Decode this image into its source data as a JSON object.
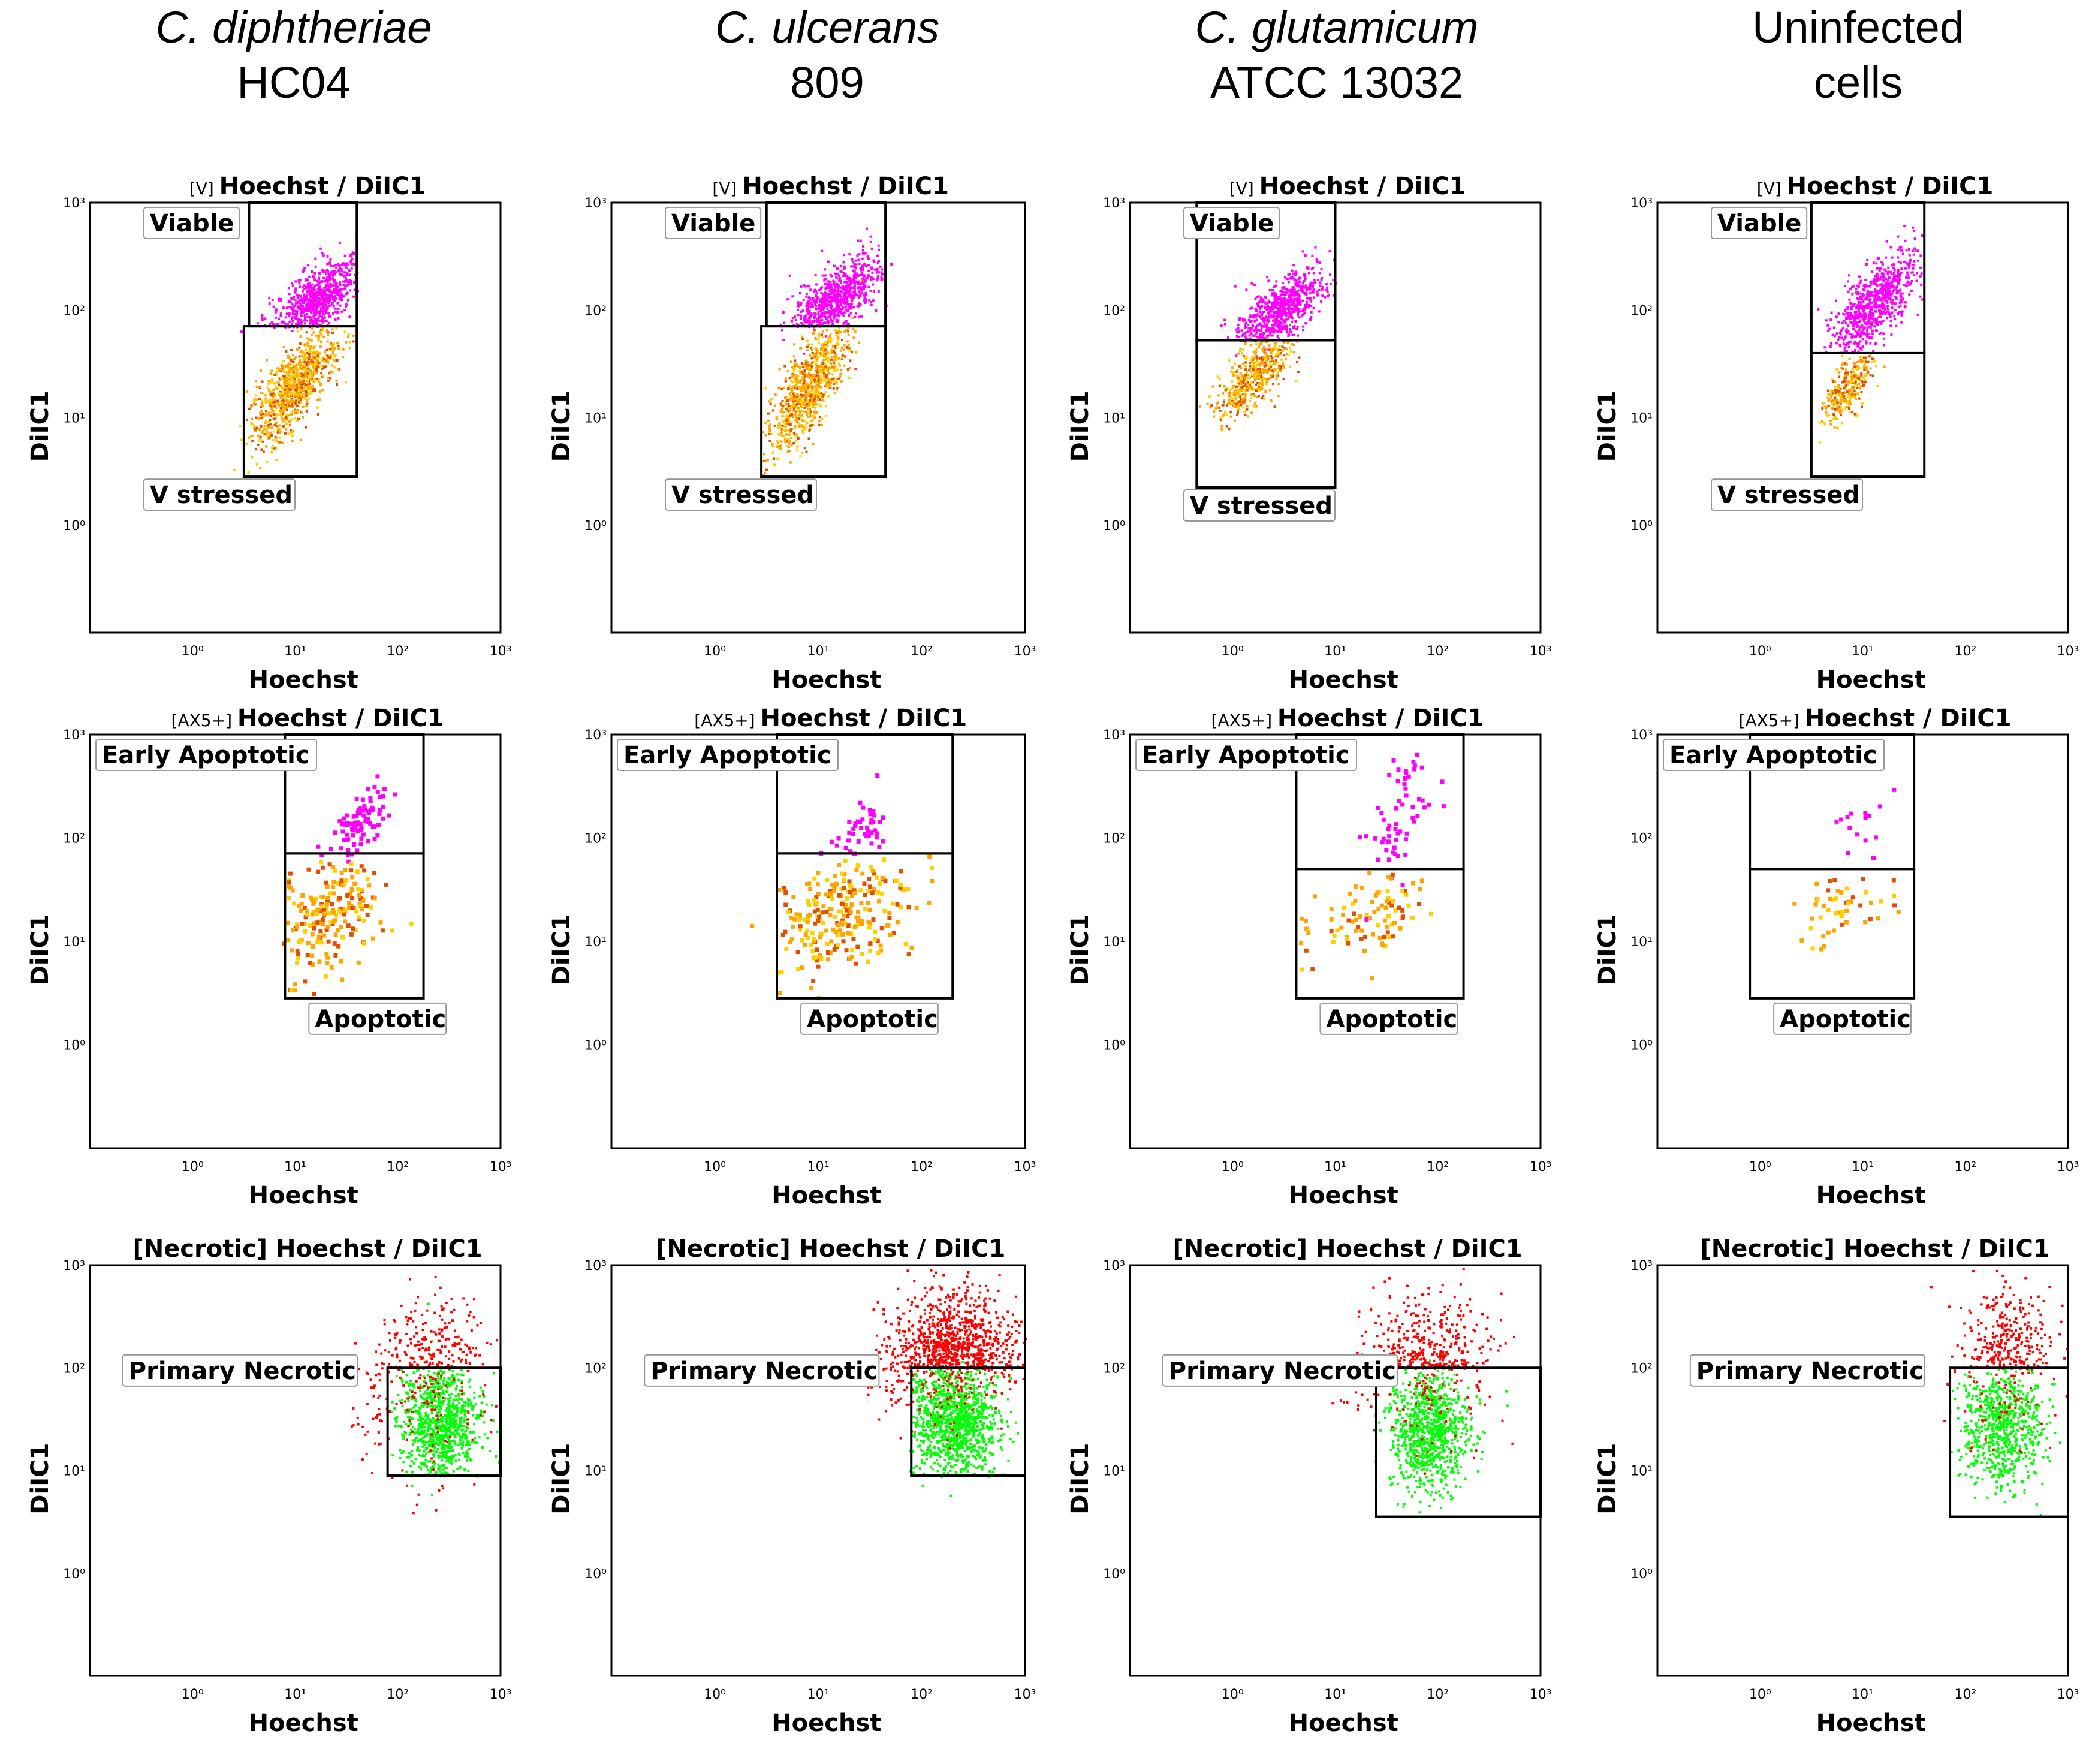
{
  "columns": [
    {
      "name": "C. diphtheriae",
      "strain": "HC04",
      "italic": true
    },
    {
      "name": "C. ulcerans",
      "strain": "809",
      "italic": true
    },
    {
      "name": "C. glutamicum",
      "strain": "ATCC 13032",
      "italic": true
    },
    {
      "name": "Uninfected",
      "strain": "cells",
      "italic": false
    }
  ],
  "colors": {
    "viable": "#ff00ff",
    "stressed": "#ffa500",
    "stressed_dense": "#e05000",
    "stressed_light": "#ffd000",
    "necrotic": "#ff0000",
    "primary_necrotic": "#00ff00",
    "outlier": "#0000ff",
    "frame": "#000000"
  },
  "chart_data": [
    {
      "type": "scatter",
      "row": 0,
      "col": 0,
      "title_prefix": "[V]",
      "title": "Hoechst / DiIC1",
      "xlabel": "Hoechst",
      "ylabel": "DiIC1",
      "xlim": [
        -1,
        3
      ],
      "ylim": [
        -1,
        3
      ],
      "xticks": [
        "10⁰",
        "10¹",
        "10²",
        "10³"
      ],
      "yticks": [
        "10⁰",
        "10¹",
        "10²",
        "10³"
      ],
      "gates": [
        {
          "label": "Viable",
          "x": [
            0.55,
            1.6
          ],
          "y": [
            1.85,
            3.0
          ]
        },
        {
          "label": "V stressed",
          "x": [
            0.5,
            1.6
          ],
          "y": [
            0.45,
            1.85
          ]
        }
      ],
      "clusters": [
        {
          "gate": "Viable",
          "n": 700,
          "cx": 1.2,
          "cy": 2.1,
          "sx": 0.22,
          "sy": 0.2,
          "corr": 0.7,
          "color": "viable"
        },
        {
          "gate": "V stressed",
          "n": 900,
          "cx": 0.98,
          "cy": 1.3,
          "sx": 0.22,
          "sy": 0.28,
          "corr": 0.75,
          "color": "stressed"
        }
      ]
    },
    {
      "type": "scatter",
      "row": 0,
      "col": 1,
      "title_prefix": "[V]",
      "title": "Hoechst / DiIC1",
      "xlabel": "Hoechst",
      "ylabel": "DiIC1",
      "xlim": [
        -1,
        3
      ],
      "ylim": [
        -1,
        3
      ],
      "xticks": [
        "10⁰",
        "10¹",
        "10²",
        "10³"
      ],
      "yticks": [
        "10⁰",
        "10¹",
        "10²",
        "10³"
      ],
      "gates": [
        {
          "label": "Viable",
          "x": [
            0.5,
            1.65
          ],
          "y": [
            1.85,
            3.0
          ]
        },
        {
          "label": "V stressed",
          "x": [
            0.45,
            1.65
          ],
          "y": [
            0.45,
            1.85
          ]
        }
      ],
      "clusters": [
        {
          "gate": "Viable",
          "n": 700,
          "cx": 1.15,
          "cy": 2.1,
          "sx": 0.22,
          "sy": 0.2,
          "corr": 0.7,
          "color": "viable"
        },
        {
          "gate": "V stressed",
          "n": 850,
          "cx": 0.9,
          "cy": 1.3,
          "sx": 0.2,
          "sy": 0.3,
          "corr": 0.75,
          "color": "stressed"
        }
      ]
    },
    {
      "type": "scatter",
      "row": 0,
      "col": 2,
      "title_prefix": "[V]",
      "title": "Hoechst / DiIC1",
      "xlabel": "Hoechst",
      "ylabel": "DiIC1",
      "xlim": [
        -1,
        3
      ],
      "ylim": [
        -1,
        3
      ],
      "xticks": [
        "10⁰",
        "10¹",
        "10²",
        "10³"
      ],
      "yticks": [
        "10⁰",
        "10¹",
        "10²",
        "10³"
      ],
      "gates": [
        {
          "label": "Viable",
          "x": [
            -0.35,
            1.0
          ],
          "y": [
            1.72,
            3.0
          ]
        },
        {
          "label": "V stressed",
          "x": [
            -0.35,
            1.0
          ],
          "y": [
            0.35,
            1.72
          ]
        }
      ],
      "clusters": [
        {
          "gate": "Viable",
          "n": 700,
          "cx": 0.45,
          "cy": 2.0,
          "sx": 0.22,
          "sy": 0.2,
          "corr": 0.7,
          "color": "viable"
        },
        {
          "gate": "V stressed",
          "n": 500,
          "cx": 0.2,
          "cy": 1.4,
          "sx": 0.18,
          "sy": 0.2,
          "corr": 0.7,
          "color": "stressed"
        }
      ]
    },
    {
      "type": "scatter",
      "row": 0,
      "col": 3,
      "title_prefix": "[V]",
      "title": "Hoechst / DiIC1",
      "xlabel": "Hoechst",
      "ylabel": "DiIC1",
      "xlim": [
        -1,
        3
      ],
      "ylim": [
        -1,
        3
      ],
      "xticks": [
        "10⁰",
        "10¹",
        "10²",
        "10³"
      ],
      "yticks": [
        "10⁰",
        "10¹",
        "10²",
        "10³"
      ],
      "gates": [
        {
          "label": "Viable",
          "x": [
            0.5,
            1.6
          ],
          "y": [
            1.6,
            3.0
          ]
        },
        {
          "label": "V stressed",
          "x": [
            0.5,
            1.6
          ],
          "y": [
            0.45,
            1.6
          ]
        }
      ],
      "clusters": [
        {
          "gate": "Viable",
          "n": 700,
          "cx": 1.1,
          "cy": 2.05,
          "sx": 0.2,
          "sy": 0.25,
          "corr": 0.7,
          "color": "viable"
        },
        {
          "gate": "V stressed",
          "n": 300,
          "cx": 0.85,
          "cy": 1.3,
          "sx": 0.12,
          "sy": 0.17,
          "corr": 0.6,
          "color": "stressed"
        }
      ]
    },
    {
      "type": "scatter",
      "row": 1,
      "col": 0,
      "title_prefix": "[AX5+]",
      "title": "Hoechst / DiIC1",
      "xlabel": "Hoechst",
      "ylabel": "DiIC1",
      "xlim": [
        -1,
        3
      ],
      "ylim": [
        -1,
        3
      ],
      "xticks": [
        "10⁰",
        "10¹",
        "10²",
        "10³"
      ],
      "yticks": [
        "10⁰",
        "10¹",
        "10²",
        "10³"
      ],
      "gates": [
        {
          "label": "Early Apoptotic",
          "x": [
            0.9,
            2.25
          ],
          "y": [
            1.85,
            3.0
          ]
        },
        {
          "label": "Apoptotic",
          "x": [
            0.9,
            2.25
          ],
          "y": [
            0.45,
            1.85
          ]
        }
      ],
      "clusters": [
        {
          "gate": "Early Apoptotic",
          "n": 90,
          "cx": 1.6,
          "cy": 2.15,
          "sx": 0.15,
          "sy": 0.2,
          "corr": 0.7,
          "color": "viable"
        },
        {
          "gate": "Apoptotic",
          "n": 200,
          "cx": 1.2,
          "cy": 1.2,
          "sx": 0.3,
          "sy": 0.3,
          "corr": 0.4,
          "color": "stressed"
        }
      ]
    },
    {
      "type": "scatter",
      "row": 1,
      "col": 1,
      "title_prefix": "[AX5+]",
      "title": "Hoechst / DiIC1",
      "xlabel": "Hoechst",
      "ylabel": "DiIC1",
      "xlim": [
        -1,
        3
      ],
      "ylim": [
        -1,
        3
      ],
      "xticks": [
        "10⁰",
        "10¹",
        "10²",
        "10³"
      ],
      "yticks": [
        "10⁰",
        "10¹",
        "10²",
        "10³"
      ],
      "gates": [
        {
          "label": "Early Apoptotic",
          "x": [
            0.6,
            2.3
          ],
          "y": [
            1.85,
            3.0
          ]
        },
        {
          "label": "Apoptotic",
          "x": [
            0.6,
            2.3
          ],
          "y": [
            0.45,
            1.85
          ]
        }
      ],
      "clusters": [
        {
          "gate": "Early Apoptotic",
          "n": 45,
          "cx": 1.4,
          "cy": 2.1,
          "sx": 0.15,
          "sy": 0.2,
          "corr": 0.6,
          "color": "viable"
        },
        {
          "gate": "Apoptotic",
          "n": 250,
          "cx": 1.2,
          "cy": 1.3,
          "sx": 0.35,
          "sy": 0.3,
          "corr": 0.3,
          "color": "stressed"
        }
      ]
    },
    {
      "type": "scatter",
      "row": 1,
      "col": 2,
      "title_prefix": "[AX5+]",
      "title": "Hoechst / DiIC1",
      "xlabel": "Hoechst",
      "ylabel": "DiIC1",
      "xlim": [
        -1,
        3
      ],
      "ylim": [
        -1,
        3
      ],
      "xticks": [
        "10⁰",
        "10¹",
        "10²",
        "10³"
      ],
      "yticks": [
        "10⁰",
        "10¹",
        "10²",
        "10³"
      ],
      "gates": [
        {
          "label": "Early Apoptotic",
          "x": [
            0.62,
            2.25
          ],
          "y": [
            1.7,
            3.0
          ]
        },
        {
          "label": "Apoptotic",
          "x": [
            0.62,
            2.25
          ],
          "y": [
            0.45,
            1.7
          ]
        }
      ],
      "clusters": [
        {
          "gate": "Early Apoptotic",
          "n": 60,
          "cx": 1.6,
          "cy": 2.2,
          "sx": 0.15,
          "sy": 0.35,
          "corr": 0.5,
          "color": "viable"
        },
        {
          "gate": "Apoptotic",
          "n": 90,
          "cx": 1.3,
          "cy": 1.25,
          "sx": 0.3,
          "sy": 0.22,
          "corr": 0.3,
          "color": "stressed"
        }
      ]
    },
    {
      "type": "scatter",
      "row": 1,
      "col": 3,
      "title_prefix": "[AX5+]",
      "title": "Hoechst / DiIC1",
      "xlabel": "Hoechst",
      "ylabel": "DiIC1",
      "xlim": [
        -1,
        3
      ],
      "ylim": [
        -1,
        3
      ],
      "xticks": [
        "10⁰",
        "10¹",
        "10²",
        "10³"
      ],
      "yticks": [
        "10⁰",
        "10¹",
        "10²",
        "10³"
      ],
      "gates": [
        {
          "label": "Early Apoptotic",
          "x": [
            -0.1,
            1.5
          ],
          "y": [
            1.7,
            3.0
          ]
        },
        {
          "label": "Apoptotic",
          "x": [
            -0.1,
            1.5
          ],
          "y": [
            0.45,
            1.7
          ]
        }
      ],
      "clusters": [
        {
          "gate": "Early Apoptotic",
          "n": 15,
          "cx": 0.9,
          "cy": 2.1,
          "sx": 0.2,
          "sy": 0.2,
          "corr": 0.3,
          "color": "viable"
        },
        {
          "gate": "Apoptotic",
          "n": 50,
          "cx": 0.8,
          "cy": 1.35,
          "sx": 0.25,
          "sy": 0.15,
          "corr": 0.2,
          "color": "stressed"
        }
      ]
    },
    {
      "type": "scatter",
      "row": 2,
      "col": 0,
      "title_prefix": "",
      "title": "[Necrotic] Hoechst / DiIC1",
      "xlabel": "Hoechst",
      "ylabel": "DiIC1",
      "xlim": [
        -1,
        3
      ],
      "ylim": [
        -1,
        3
      ],
      "xticks": [
        "10⁰",
        "10¹",
        "10²",
        "10³"
      ],
      "yticks": [
        "10⁰",
        "10¹",
        "10²",
        "10³"
      ],
      "gates": [
        {
          "label": "Primary Necrotic",
          "x": [
            1.9,
            3.0
          ],
          "y": [
            0.95,
            2.0
          ]
        }
      ],
      "clusters": [
        {
          "gate": "Primary Necrotic",
          "n": 900,
          "cx": 2.4,
          "cy": 1.5,
          "sx": 0.2,
          "sy": 0.3,
          "corr": 0.0,
          "color": "primary_necrotic"
        },
        {
          "gate": "",
          "n": 350,
          "cx": 2.3,
          "cy": 1.8,
          "sx": 0.3,
          "sy": 0.4,
          "corr": 0.0,
          "color": "necrotic"
        }
      ]
    },
    {
      "type": "scatter",
      "row": 2,
      "col": 1,
      "title_prefix": "",
      "title": "[Necrotic] Hoechst / DiIC1",
      "xlabel": "Hoechst",
      "ylabel": "DiIC1",
      "xlim": [
        -1,
        3
      ],
      "ylim": [
        -1,
        3
      ],
      "xticks": [
        "10⁰",
        "10¹",
        "10²",
        "10³"
      ],
      "yticks": [
        "10⁰",
        "10¹",
        "10²",
        "10³"
      ],
      "gates": [
        {
          "label": "Primary Necrotic",
          "x": [
            1.9,
            3.0
          ],
          "y": [
            0.95,
            2.0
          ]
        }
      ],
      "clusters": [
        {
          "gate": "Primary Necrotic",
          "n": 1100,
          "cx": 2.3,
          "cy": 1.5,
          "sx": 0.22,
          "sy": 0.3,
          "corr": 0.0,
          "color": "primary_necrotic"
        },
        {
          "gate": "",
          "n": 1000,
          "cx": 2.3,
          "cy": 2.1,
          "sx": 0.3,
          "sy": 0.3,
          "corr": 0.0,
          "color": "necrotic"
        }
      ]
    },
    {
      "type": "scatter",
      "row": 2,
      "col": 2,
      "title_prefix": "",
      "title": "[Necrotic] Hoechst / DiIC1",
      "xlabel": "Hoechst",
      "ylabel": "DiIC1",
      "xlim": [
        -1,
        3
      ],
      "ylim": [
        -1,
        3
      ],
      "xticks": [
        "10⁰",
        "10¹",
        "10²",
        "10³"
      ],
      "yticks": [
        "10⁰",
        "10¹",
        "10²",
        "10³"
      ],
      "gates": [
        {
          "label": "Primary Necrotic",
          "x": [
            1.4,
            3.0
          ],
          "y": [
            0.55,
            2.0
          ]
        }
      ],
      "clusters": [
        {
          "gate": "Primary Necrotic",
          "n": 900,
          "cx": 1.9,
          "cy": 1.4,
          "sx": 0.2,
          "sy": 0.3,
          "corr": 0.0,
          "color": "primary_necrotic"
        },
        {
          "gate": "",
          "n": 450,
          "cx": 1.9,
          "cy": 2.0,
          "sx": 0.3,
          "sy": 0.35,
          "corr": 0.0,
          "color": "necrotic"
        }
      ]
    },
    {
      "type": "scatter",
      "row": 2,
      "col": 3,
      "title_prefix": "",
      "title": "[Necrotic] Hoechst / DiIC1",
      "xlabel": "Hoechst",
      "ylabel": "DiIC1",
      "xlim": [
        -1,
        3
      ],
      "ylim": [
        -1,
        3
      ],
      "xticks": [
        "10⁰",
        "10¹",
        "10²",
        "10³"
      ],
      "yticks": [
        "10⁰",
        "10¹",
        "10²",
        "10³"
      ],
      "gates": [
        {
          "label": "Primary Necrotic",
          "x": [
            1.85,
            3.0
          ],
          "y": [
            0.55,
            2.0
          ]
        }
      ],
      "clusters": [
        {
          "gate": "Primary Necrotic",
          "n": 700,
          "cx": 2.35,
          "cy": 1.45,
          "sx": 0.2,
          "sy": 0.3,
          "corr": 0.0,
          "color": "primary_necrotic"
        },
        {
          "gate": "",
          "n": 350,
          "cx": 2.4,
          "cy": 2.0,
          "sx": 0.22,
          "sy": 0.38,
          "corr": 0.0,
          "color": "necrotic"
        }
      ]
    }
  ]
}
